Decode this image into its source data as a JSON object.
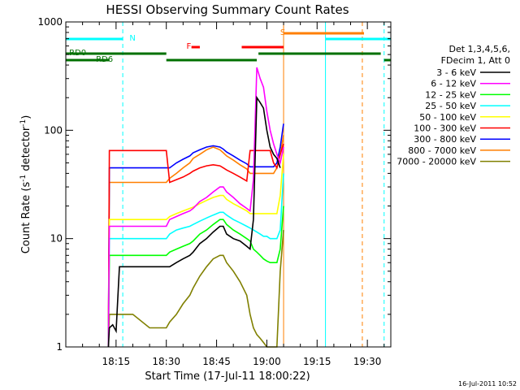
{
  "chart_data": {
    "type": "line",
    "title": "HESSI Observing Summary Count Rates",
    "xlabel": "Start Time (17-Jul-11 18:00:22)",
    "ylabel": "Count Rate (s⁻¹ detector⁻¹)",
    "ylabel_parts": {
      "main": "Count Rate (s",
      "sup1": "-1",
      "mid": " detector",
      "sup2": "-1",
      "end": ")"
    },
    "xlim": [
      "18:00",
      "19:37"
    ],
    "xlim_min": [
      0,
      97
    ],
    "ylim": [
      1,
      1000
    ],
    "yscale": "log",
    "x_ticks": [
      {
        "label": "18:15",
        "min": 15
      },
      {
        "label": "18:30",
        "min": 30
      },
      {
        "label": "18:45",
        "min": 45
      },
      {
        "label": "19:00",
        "min": 60
      },
      {
        "label": "19:15",
        "min": 75
      },
      {
        "label": "19:30",
        "min": 90
      }
    ],
    "y_ticks": [
      {
        "label": "1",
        "value": 1
      },
      {
        "label": "10",
        "value": 10
      },
      {
        "label": "100",
        "value": 100
      },
      {
        "label": "1000",
        "value": 1000
      }
    ],
    "legend_header": [
      "Det 1,3,4,5,6,",
      "FDecim 1, Att 0"
    ],
    "legend_placement": "right",
    "timestamp": "16-Jul-2011 10:52",
    "series": [
      {
        "name": "3 - 6 keV",
        "color": "#000000",
        "x": [
          12.7,
          13,
          14,
          15,
          16,
          17,
          18,
          19,
          20,
          22,
          24,
          26,
          28,
          30,
          31,
          33,
          35,
          37,
          38,
          40,
          42,
          44,
          46,
          47,
          48,
          50,
          52,
          54,
          55,
          56,
          57,
          58,
          59,
          60,
          61,
          62,
          63,
          64
        ],
        "y": [
          1,
          1.5,
          1.6,
          1.4,
          5.5,
          5.5,
          5.5,
          5.5,
          5.5,
          5.5,
          5.5,
          5.5,
          5.5,
          5.5,
          5.5,
          6,
          6.5,
          7,
          7.5,
          9,
          10,
          11.5,
          13,
          13,
          11,
          10,
          9.5,
          8.5,
          8,
          15,
          200,
          180,
          160,
          100,
          70,
          60,
          55,
          45
        ]
      },
      {
        "name": "6 - 12 keV",
        "color": "#ff00ff",
        "x": [
          12.7,
          13,
          15,
          20,
          25,
          28,
          30,
          31,
          33,
          35,
          37,
          38,
          40,
          42,
          44,
          46,
          47,
          48,
          50,
          52,
          54,
          55,
          56,
          57,
          58,
          59,
          60,
          61,
          62,
          63,
          64,
          65
        ],
        "y": [
          1,
          13,
          13,
          13,
          13,
          13,
          13,
          15,
          16,
          17,
          18,
          19,
          22,
          24,
          27,
          30,
          30,
          27,
          24,
          21,
          19,
          18,
          35,
          380,
          300,
          250,
          150,
          100,
          75,
          60,
          50,
          70
        ]
      },
      {
        "name": "12 - 25 keV",
        "color": "#00ff00",
        "x": [
          12.7,
          13,
          15,
          20,
          25,
          28,
          30,
          31,
          33,
          35,
          37,
          38,
          40,
          42,
          44,
          46,
          47,
          48,
          50,
          52,
          54,
          55,
          56,
          57,
          58,
          59,
          60,
          61,
          62,
          63,
          64,
          65
        ],
        "y": [
          1,
          7,
          7,
          7,
          7,
          7,
          7,
          7.5,
          8,
          8.5,
          9,
          9.5,
          11,
          12,
          13.5,
          15,
          15,
          13.5,
          12,
          11,
          10,
          9.5,
          8,
          7.5,
          7,
          6.5,
          6.2,
          6,
          6,
          6,
          8,
          20
        ]
      },
      {
        "name": "25 - 50 keV",
        "color": "#00ffff",
        "x": [
          12.7,
          13,
          15,
          20,
          25,
          28,
          30,
          31,
          33,
          35,
          37,
          38,
          40,
          42,
          44,
          46,
          47,
          48,
          50,
          52,
          54,
          55,
          56,
          57,
          58,
          59,
          60,
          61,
          62,
          63,
          64,
          65
        ],
        "y": [
          1,
          10,
          10,
          10,
          10,
          10,
          10,
          11,
          12,
          12.5,
          13,
          13.5,
          14.5,
          15.5,
          16.5,
          17.5,
          17.5,
          16.5,
          15,
          14,
          13,
          12.5,
          12,
          11.5,
          11,
          10.5,
          10.5,
          10,
          10,
          10,
          12,
          40
        ]
      },
      {
        "name": "50 - 100 keV",
        "color": "#ffff00",
        "x": [
          12.7,
          13,
          15,
          20,
          25,
          28,
          30,
          31,
          33,
          35,
          37,
          38,
          40,
          42,
          44,
          46,
          47,
          48,
          50,
          52,
          54,
          55,
          56,
          57,
          58,
          59,
          60,
          61,
          62,
          63,
          64,
          65
        ],
        "y": [
          1,
          15,
          15,
          15,
          15,
          15,
          15,
          16,
          17,
          18,
          19,
          19.5,
          21,
          22.5,
          24,
          25,
          25,
          23,
          21,
          19.5,
          18,
          17,
          17,
          17,
          17,
          17,
          17,
          17,
          17,
          17,
          25,
          60
        ]
      },
      {
        "name": "100 - 300 keV",
        "color": "#ff0000",
        "x": [
          12.7,
          13,
          15,
          20,
          25,
          28,
          30,
          31,
          33,
          35,
          37,
          38,
          40,
          42,
          44,
          46,
          47,
          48,
          50,
          52,
          54,
          55,
          56,
          57,
          58,
          59,
          60,
          61,
          62,
          63,
          64,
          65
        ],
        "y": [
          1,
          65,
          65,
          65,
          65,
          65,
          65,
          33,
          35,
          37,
          40,
          42,
          45,
          47,
          48,
          47,
          45,
          43,
          40,
          37,
          34,
          65,
          65,
          65,
          65,
          65,
          65,
          65,
          50,
          45,
          60,
          75
        ]
      },
      {
        "name": "300 - 800 keV",
        "color": "#0000ff",
        "x": [
          12.7,
          13,
          15,
          20,
          25,
          28,
          30,
          31,
          33,
          35,
          37,
          38,
          40,
          42,
          44,
          46,
          47,
          48,
          50,
          52,
          54,
          55,
          56,
          57,
          58,
          59,
          60,
          61,
          62,
          63,
          64,
          65
        ],
        "y": [
          1,
          45,
          45,
          45,
          45,
          45,
          45,
          45,
          50,
          54,
          58,
          62,
          66,
          70,
          72,
          70,
          67,
          63,
          58,
          53,
          49,
          46,
          46,
          46,
          46,
          46,
          46,
          46,
          46,
          50,
          70,
          115
        ]
      },
      {
        "name": "800 - 7000 keV",
        "color": "#ff7f00",
        "x": [
          12.7,
          13,
          15,
          20,
          25,
          28,
          30,
          31,
          33,
          35,
          37,
          38,
          40,
          42,
          44,
          46,
          47,
          48,
          50,
          52,
          54,
          55,
          56,
          57,
          58,
          59,
          60,
          61,
          62,
          63,
          64,
          65
        ],
        "y": [
          1,
          33,
          33,
          33,
          33,
          33,
          33,
          36,
          40,
          45,
          50,
          55,
          60,
          66,
          70,
          66,
          62,
          58,
          53,
          48,
          44,
          40,
          40,
          40,
          40,
          40,
          40,
          40,
          40,
          45,
          60,
          90
        ]
      },
      {
        "name": "7000 - 20000 keV",
        "color": "#808000",
        "x": [
          12.7,
          13,
          15,
          20,
          25,
          28,
          30,
          31,
          33,
          35,
          37,
          38,
          40,
          42,
          44,
          46,
          47,
          48,
          50,
          52,
          54,
          55,
          56,
          57,
          58,
          59,
          60,
          61,
          62,
          63,
          64,
          65
        ],
        "y": [
          1,
          2,
          2,
          2,
          1.5,
          1.5,
          1.5,
          1.7,
          2,
          2.5,
          3,
          3.5,
          4.5,
          5.5,
          6.5,
          7,
          7,
          6,
          5,
          4,
          3,
          2,
          1.5,
          1.3,
          1.2,
          1.1,
          1,
          1,
          1,
          1,
          5,
          12
        ]
      }
    ],
    "state_bars": [
      {
        "label": "N",
        "color": "#00ffff",
        "label_min": 19,
        "segments": [
          [
            0,
            17
          ],
          [
            77.5,
            97
          ]
        ]
      },
      {
        "label": "RD0",
        "color": "#007000",
        "label_min": 1,
        "segments": [
          [
            0,
            30
          ],
          [
            57.5,
            94
          ]
        ]
      },
      {
        "label": "RD6",
        "color": "#007000",
        "label_min": 9,
        "segments": [
          [
            0,
            13
          ],
          [
            30,
            57
          ],
          [
            95,
            97
          ]
        ]
      },
      {
        "label": "F",
        "color": "#ff0000",
        "label_min": 36,
        "segments": [
          [
            37.5,
            40
          ],
          [
            52.5,
            65
          ]
        ]
      },
      {
        "label": "S",
        "color": "#ff7f00",
        "label_min": 64,
        "segments": [
          [
            65,
            89
          ]
        ]
      }
    ],
    "vertical_markers": [
      {
        "min": 17,
        "color": "#00ffff",
        "style": "dashed"
      },
      {
        "min": 65,
        "color": "#ff7f00",
        "style": "solid"
      },
      {
        "min": 77.5,
        "color": "#00ffff",
        "style": "solid"
      },
      {
        "min": 88.5,
        "color": "#ff7f00",
        "style": "dashed"
      },
      {
        "min": 95,
        "color": "#00ffff",
        "style": "dashed"
      }
    ]
  }
}
